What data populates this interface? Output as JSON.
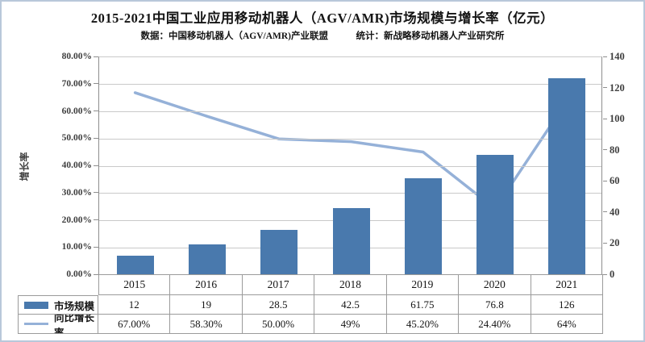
{
  "header": {
    "title": "2015-2021中国工业应用移动机器人（AGV/AMR)市场规模与增长率（亿元）",
    "subtitle": "数据：中国移动机器人（AGV/AMR)产业联盟　　　统计：新战略移动机器人产业研究所"
  },
  "colors": {
    "bar": "#4979ad",
    "line": "#95b1d8",
    "grid": "#c9c9c9",
    "axis": "#8e8e8e",
    "axis_text": "#3f3f3f",
    "table_border": "#9b9b9b",
    "frame_border": "#b9c8da",
    "text": "#141414"
  },
  "chart_data": {
    "type": "bar",
    "subtype": "combo-bar-line",
    "categories": [
      "2015",
      "2016",
      "2017",
      "2018",
      "2019",
      "2020",
      "2021"
    ],
    "series": [
      {
        "name": "市场规模",
        "type": "bar",
        "axis": "right",
        "values": [
          12,
          19,
          28.5,
          42.5,
          61.75,
          76.8,
          126
        ],
        "labels": [
          "12",
          "19",
          "28.5",
          "42.5",
          "61.75",
          "76.8",
          "126"
        ]
      },
      {
        "name": "同比增长率",
        "type": "line",
        "axis": "left",
        "values": [
          0.67,
          0.583,
          0.5,
          0.49,
          0.452,
          0.244,
          0.64
        ],
        "labels": [
          "67.00%",
          "58.30%",
          "50.00%",
          "49%",
          "45.20%",
          "24.40%",
          "64%"
        ]
      }
    ],
    "left_axis": {
      "title": "增长率",
      "min": 0,
      "max": 0.8,
      "ticks": [
        "80.00%",
        "70.00%",
        "60.00%",
        "50.00%",
        "40.00%",
        "30.00%",
        "20.00%",
        "10.00%",
        "0.00%"
      ]
    },
    "right_axis": {
      "min": 0,
      "max": 140,
      "ticks": [
        "140",
        "120",
        "100",
        "80",
        "60",
        "40",
        "20",
        "0"
      ]
    },
    "grid": "horizontal",
    "legend_position": "table-left"
  }
}
